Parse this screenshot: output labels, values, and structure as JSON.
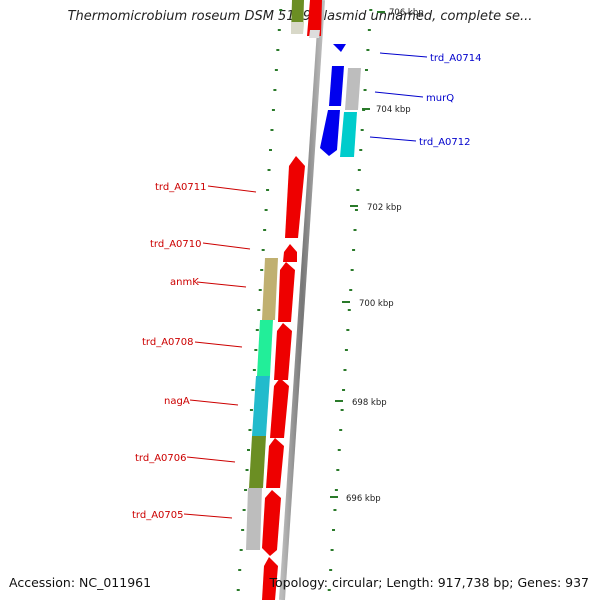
{
  "title": "Thermomicrobium roseum DSM 5159 plasmid unnamed, complete se...",
  "footer": {
    "accession": "Accession: NC_011961",
    "topology": "Topology: circular; Length: 917,738 bp; Genes: 937"
  },
  "colors": {
    "forward_label": "#cc0000",
    "reverse_label": "#0000cc",
    "tick": "#2a7a2a",
    "backbone": "#8a8a8a"
  },
  "scale": [
    {
      "label": "706 kbp",
      "kbp": 706
    },
    {
      "label": "704 kbp",
      "kbp": 704
    },
    {
      "label": "702 kbp",
      "kbp": 702
    },
    {
      "label": "700 kbp",
      "kbp": 700
    },
    {
      "label": "698 kbp",
      "kbp": 698
    },
    {
      "label": "696 kbp",
      "kbp": 696
    }
  ],
  "reverse_genes": [
    {
      "name": "trd_A0714",
      "color": "#0000ee"
    },
    {
      "name": "murQ",
      "color": "#0000ee"
    },
    {
      "name": "trd_A0712",
      "color": "#0000ee"
    }
  ],
  "forward_genes": [
    {
      "name": "trd_A0711",
      "color": "#ee0000"
    },
    {
      "name": "trd_A0710",
      "color": "#ee0000"
    },
    {
      "name": "anmK",
      "color": "#ee0000"
    },
    {
      "name": "trd_A0708",
      "color": "#ee0000"
    },
    {
      "name": "nagA",
      "color": "#ee0000"
    },
    {
      "name": "trd_A0706",
      "color": "#ee0000"
    },
    {
      "name": "trd_A0705",
      "color": "#ee0000"
    }
  ],
  "cog_colors": [
    "#c0b070",
    "#22ee99",
    "#22bbcc",
    "#6b8e23",
    "#bdbdbd",
    "#00cccc"
  ]
}
